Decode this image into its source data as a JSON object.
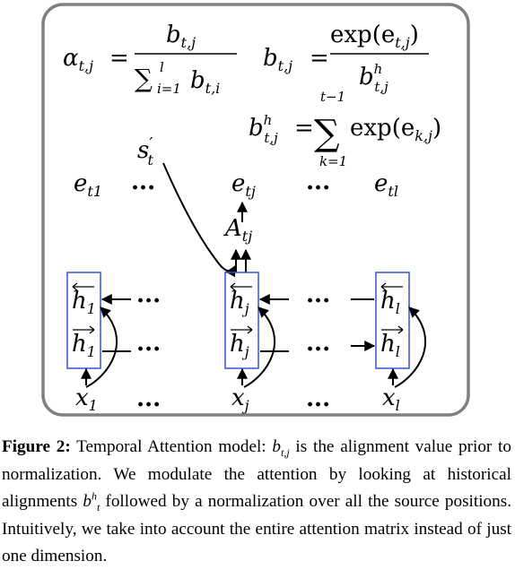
{
  "equations": {
    "alpha_lhs": "α",
    "alpha_sub": "t,j",
    "equals": "=",
    "b_num": "b",
    "b_num_sub": "t,j",
    "sum_sym": "∑",
    "sum_sub": "i=1",
    "sum_sup": "l",
    "b_den": "b",
    "b_den_sub": "t,i",
    "b2_lhs": "b",
    "b2_lhs_sub": "t,j",
    "exp_num": "exp(e",
    "exp_num_sub": "t,j",
    "exp_num_close": ")",
    "bh_den": "b",
    "bh_den_sup": "h",
    "bh_den_sub": "t,j",
    "bh_lhs": "b",
    "bh_lhs_sup": "h",
    "bh_lhs_sub": "t,j",
    "sum2_sup": "t−1",
    "sum2_sub": "k=1",
    "exp2": "exp(e",
    "exp2_sub": "k,j",
    "exp2_close": ")"
  },
  "nodes": {
    "s_prime": "s",
    "s_prime_mark": "′",
    "s_prime_sub": "t",
    "e1": "e",
    "e1_sub": "t1",
    "ej": "e",
    "ej_sub": "tj",
    "el": "e",
    "el_sub": "tl",
    "A": "A",
    "A_sub": "tj",
    "h": "h",
    "h1_sub": "1",
    "hj_sub": "j",
    "hl_sub": "l",
    "x": "x",
    "x1_sub": "1",
    "xj_sub": "j",
    "xl_sub": "l",
    "dots": "···"
  },
  "caption": {
    "label": "Figure 2:",
    "t1": " Temporal Attention model: ",
    "b": "b",
    "b_sub": "t,j",
    "t2": " is the alignment value prior to normalization.  We modulate the attention by looking at historical alignments ",
    "bh": "b",
    "bh_sup": "h",
    "bh_sub": "t",
    "t3": " followed by a normalization over all the source positions. Intuitively, we take into account the entire attention matrix instead of just one dimension."
  },
  "colors": {
    "frame": "#808080",
    "box": "#3355cc",
    "ink": "#000000"
  }
}
